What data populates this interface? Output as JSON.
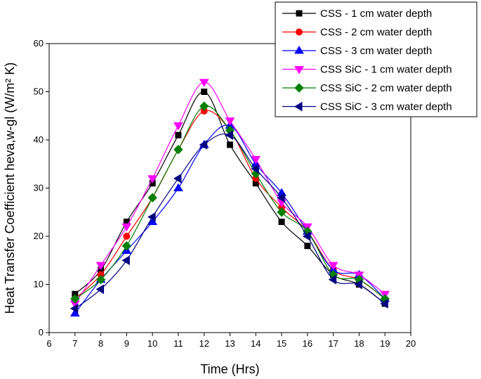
{
  "chart_data": {
    "type": "line",
    "xlabel": "Time (Hrs)",
    "ylabel": "Heat Transfer Coefficient heva,w-gl (W/m² K)",
    "xlim": [
      6,
      20
    ],
    "ylim": [
      0,
      60
    ],
    "xticks": [
      6,
      7,
      8,
      9,
      10,
      11,
      12,
      13,
      14,
      15,
      16,
      17,
      18,
      19,
      20
    ],
    "yticks": [
      0,
      10,
      20,
      30,
      40,
      50,
      60
    ],
    "x": [
      7,
      8,
      9,
      10,
      11,
      12,
      13,
      14,
      15,
      16,
      17,
      18,
      19
    ],
    "legend_position": "top-right",
    "series": [
      {
        "name": "CSS - 1 cm water depth",
        "color": "#000000",
        "marker": "square",
        "values": [
          8,
          13,
          23,
          31,
          41,
          50,
          39,
          31,
          23,
          18,
          12,
          10,
          6
        ]
      },
      {
        "name": "CSS - 2 cm water depth",
        "color": "#ff0000",
        "marker": "circle",
        "values": [
          7,
          12,
          20,
          28,
          38,
          46,
          42,
          32,
          26,
          21,
          13,
          11,
          7
        ]
      },
      {
        "name": "CSS - 3 cm water depth",
        "color": "#0000ff",
        "marker": "triangle-up",
        "values": [
          4,
          11,
          17,
          23,
          30,
          39,
          43,
          35,
          29,
          21,
          13,
          12,
          7
        ]
      },
      {
        "name": "CSS SiC - 1 cm water depth",
        "color": "#ff00ff",
        "marker": "triangle-down",
        "values": [
          6,
          14,
          22,
          32,
          43,
          52,
          44,
          36,
          27,
          22,
          14,
          12,
          8
        ]
      },
      {
        "name": "CSS SiC - 2 cm water depth",
        "color": "#008000",
        "marker": "diamond",
        "values": [
          7,
          11,
          18,
          28,
          38,
          47,
          42,
          33,
          25,
          21,
          12,
          11,
          7
        ]
      },
      {
        "name": "CSS SiC - 3 cm water depth",
        "color": "#000080",
        "marker": "triangle-left",
        "values": [
          5,
          9,
          15,
          24,
          32,
          39,
          41,
          34,
          28,
          20,
          11,
          10,
          6
        ]
      }
    ]
  }
}
